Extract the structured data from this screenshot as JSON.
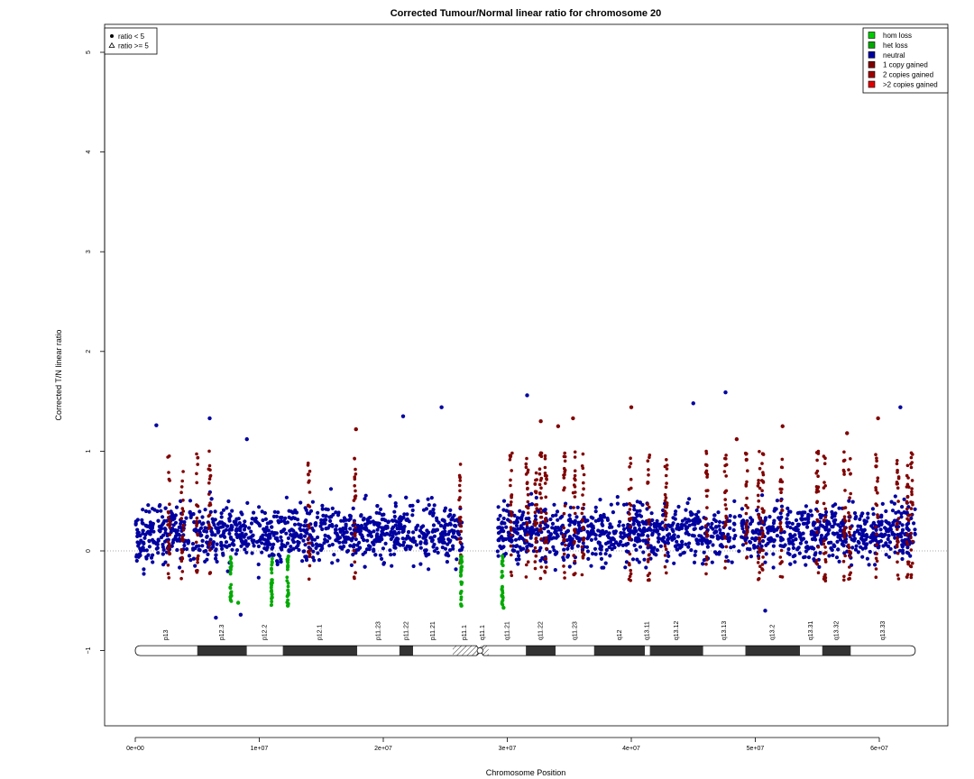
{
  "chart_data": {
    "type": "scatter",
    "title": "Corrected Tumour/Normal linear ratio for chromosome  20",
    "xlabel": "Chromosome Position",
    "ylabel": "Corrected T/N linear ratio",
    "xlim": [
      -2500000,
      65000000
    ],
    "ylim": [
      -1.8,
      5.3
    ],
    "x_ticks": [
      0,
      10000000,
      20000000,
      30000000,
      40000000,
      50000000,
      60000000
    ],
    "x_tick_labels": [
      "0e+00",
      "1e+07",
      "2e+07",
      "3e+07",
      "4e+07",
      "5e+07",
      "6e+07"
    ],
    "y_ticks": [
      -1,
      0,
      1,
      2,
      3,
      4,
      5
    ],
    "y_tick_labels": [
      "−1",
      "0",
      "1",
      "2",
      "3",
      "4",
      "5"
    ],
    "reference_line_y": 0,
    "data_range_x": [
      0,
      62900000
    ],
    "gap_x": [
      26400000,
      29200000
    ],
    "shape_legend": {
      "position": "top-left",
      "items": [
        {
          "label": "ratio < 5",
          "shape": "circle"
        },
        {
          "label": "ratio >= 5",
          "shape": "triangle"
        }
      ]
    },
    "legend": {
      "position": "top-right",
      "items": [
        {
          "label": "hom loss",
          "color": "#00CC00"
        },
        {
          "label": "het loss",
          "color": "#00AA00"
        },
        {
          "label": "neutral",
          "color": "#0000A0"
        },
        {
          "label": "1 copy gained",
          "color": "#800000"
        },
        {
          "label": "2 copies gained",
          "color": "#A00000"
        },
        {
          "label": ">2 copies gained",
          "color": "#E00000"
        }
      ]
    },
    "series": [
      {
        "name": "neutral",
        "color": "#0000A0",
        "note_x_extent": "all positions except gap",
        "y_typical_range": [
          -0.4,
          0.9
        ]
      },
      {
        "name": "1 copy gained",
        "color": "#800000",
        "x_positions": [
          2700000,
          3800000,
          5000000,
          6000000,
          14000000,
          17700000,
          26200000,
          30300000,
          31600000,
          32300000,
          32700000,
          33100000,
          34600000,
          35400000,
          36100000,
          39900000,
          41400000,
          42800000,
          46100000,
          47600000,
          49300000,
          50300000,
          50600000,
          52100000,
          55000000,
          55600000,
          57200000,
          57600000,
          59800000,
          61500000,
          62300000,
          62600000
        ],
        "highlight_points": [
          {
            "x": 17800000,
            "y": 1.22
          },
          {
            "x": 32700000,
            "y": 1.3
          },
          {
            "x": 34100000,
            "y": 1.25
          },
          {
            "x": 35300000,
            "y": 1.33
          },
          {
            "x": 40000000,
            "y": 1.44
          },
          {
            "x": 48500000,
            "y": 1.12
          },
          {
            "x": 52200000,
            "y": 1.25
          },
          {
            "x": 57400000,
            "y": 1.18
          },
          {
            "x": 59900000,
            "y": 1.33
          }
        ]
      },
      {
        "name": "het loss",
        "color": "#00AA00",
        "x_positions": [
          7700000,
          11000000,
          12300000,
          26300000,
          29600000
        ],
        "highlight_points": [
          {
            "x": 8300000,
            "y": -0.52
          },
          {
            "x": 12300000,
            "y": -0.55
          },
          {
            "x": 26300000,
            "y": -0.55
          },
          {
            "x": 29700000,
            "y": -0.57
          }
        ]
      },
      {
        "name": "neutral outliers",
        "color": "#0000A0",
        "points": [
          {
            "x": 1700000,
            "y": 1.26
          },
          {
            "x": 6000000,
            "y": 1.33
          },
          {
            "x": 9000000,
            "y": 1.12
          },
          {
            "x": 21600000,
            "y": 1.35
          },
          {
            "x": 24700000,
            "y": 1.44
          },
          {
            "x": 31600000,
            "y": 1.56
          },
          {
            "x": 45000000,
            "y": 1.48
          },
          {
            "x": 47600000,
            "y": 1.59
          },
          {
            "x": 61700000,
            "y": 1.44
          },
          {
            "x": 6500000,
            "y": -0.67
          },
          {
            "x": 8500000,
            "y": -0.64
          },
          {
            "x": 50800000,
            "y": -0.6
          }
        ]
      }
    ]
  },
  "ideogram": {
    "y": -1,
    "start": 0,
    "end": 62900000,
    "centromere": [
      26400000,
      29200000
    ],
    "bands": [
      {
        "name": "p13",
        "start": 0,
        "end": 5000000,
        "stain": "gneg"
      },
      {
        "name": "p12.3",
        "start": 5000000,
        "end": 9000000,
        "stain": "gpos"
      },
      {
        "name": "p12.2",
        "start": 9000000,
        "end": 11900000,
        "stain": "gneg"
      },
      {
        "name": "p12.1",
        "start": 11900000,
        "end": 17900000,
        "stain": "gpos"
      },
      {
        "name": "p11.23",
        "start": 17900000,
        "end": 21300000,
        "stain": "gneg"
      },
      {
        "name": "p11.22",
        "start": 21300000,
        "end": 22400000,
        "stain": "gpos"
      },
      {
        "name": "p11.21",
        "start": 22400000,
        "end": 25600000,
        "stain": "gneg"
      },
      {
        "name": "p11.1",
        "start": 25600000,
        "end": 27500000,
        "stain": "acen"
      },
      {
        "name": "q11.1",
        "start": 27500000,
        "end": 28500000,
        "stain": "acen"
      },
      {
        "name": "q11.21",
        "start": 28500000,
        "end": 31500000,
        "stain": "gneg"
      },
      {
        "name": "q11.22",
        "start": 31500000,
        "end": 33900000,
        "stain": "gpos"
      },
      {
        "name": "q11.23",
        "start": 33900000,
        "end": 37000000,
        "stain": "gneg"
      },
      {
        "name": "q12",
        "start": 37000000,
        "end": 41100000,
        "stain": "gpos"
      },
      {
        "name": "q13.11",
        "start": 41100000,
        "end": 41500000,
        "stain": "gneg"
      },
      {
        "name": "q13.12",
        "start": 41500000,
        "end": 45800000,
        "stain": "gpos"
      },
      {
        "name": "q13.13",
        "start": 45800000,
        "end": 49200000,
        "stain": "gneg"
      },
      {
        "name": "q13.2",
        "start": 49200000,
        "end": 53600000,
        "stain": "gpos"
      },
      {
        "name": "q13.31",
        "start": 53600000,
        "end": 55400000,
        "stain": "gneg"
      },
      {
        "name": "q13.32",
        "start": 55400000,
        "end": 57700000,
        "stain": "gpos"
      },
      {
        "name": "q13.33",
        "start": 57700000,
        "end": 62900000,
        "stain": "gneg"
      }
    ]
  }
}
